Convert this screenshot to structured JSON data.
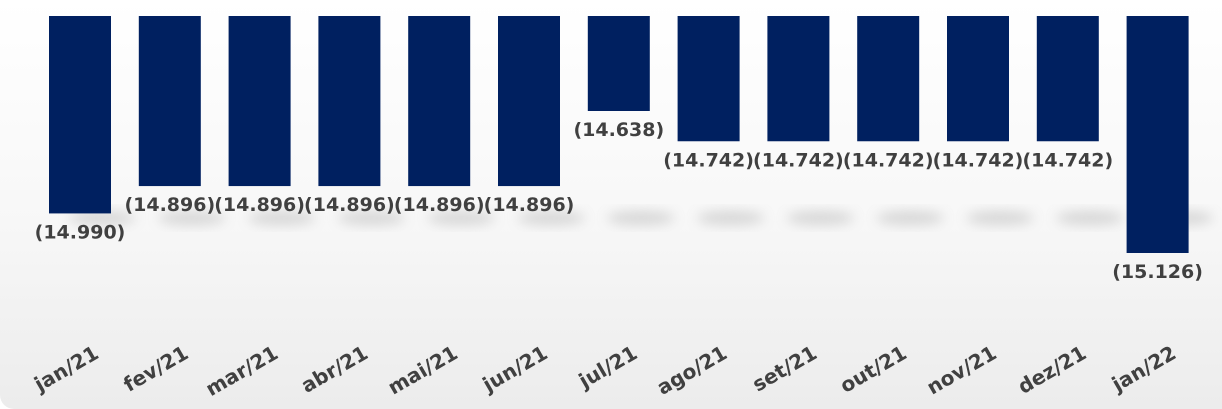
{
  "chart_data": {
    "type": "bar",
    "categories": [
      "jan/21",
      "fev/21",
      "mar/21",
      "abr/21",
      "mai/21",
      "jun/21",
      "jul/21",
      "ago/21",
      "set/21",
      "out/21",
      "nov/21",
      "dez/21",
      "jan/22"
    ],
    "values": [
      -14990,
      -14896,
      -14896,
      -14896,
      -14896,
      -14896,
      -14638,
      -14742,
      -14742,
      -14742,
      -14742,
      -14742,
      -15126
    ],
    "data_labels": [
      "(14.990)",
      "(14.896)",
      "(14.896)",
      "(14.896)",
      "(14.896)",
      "(14.896)",
      "(14.638)",
      "(14.742)",
      "(14.742)",
      "(14.742)",
      "(14.742)",
      "(14.742)",
      "(15.126)"
    ],
    "bar_color": "#002060",
    "label_color": "#404040",
    "title": "",
    "xlabel": "",
    "ylabel": "",
    "grid": false,
    "legend": "none"
  }
}
